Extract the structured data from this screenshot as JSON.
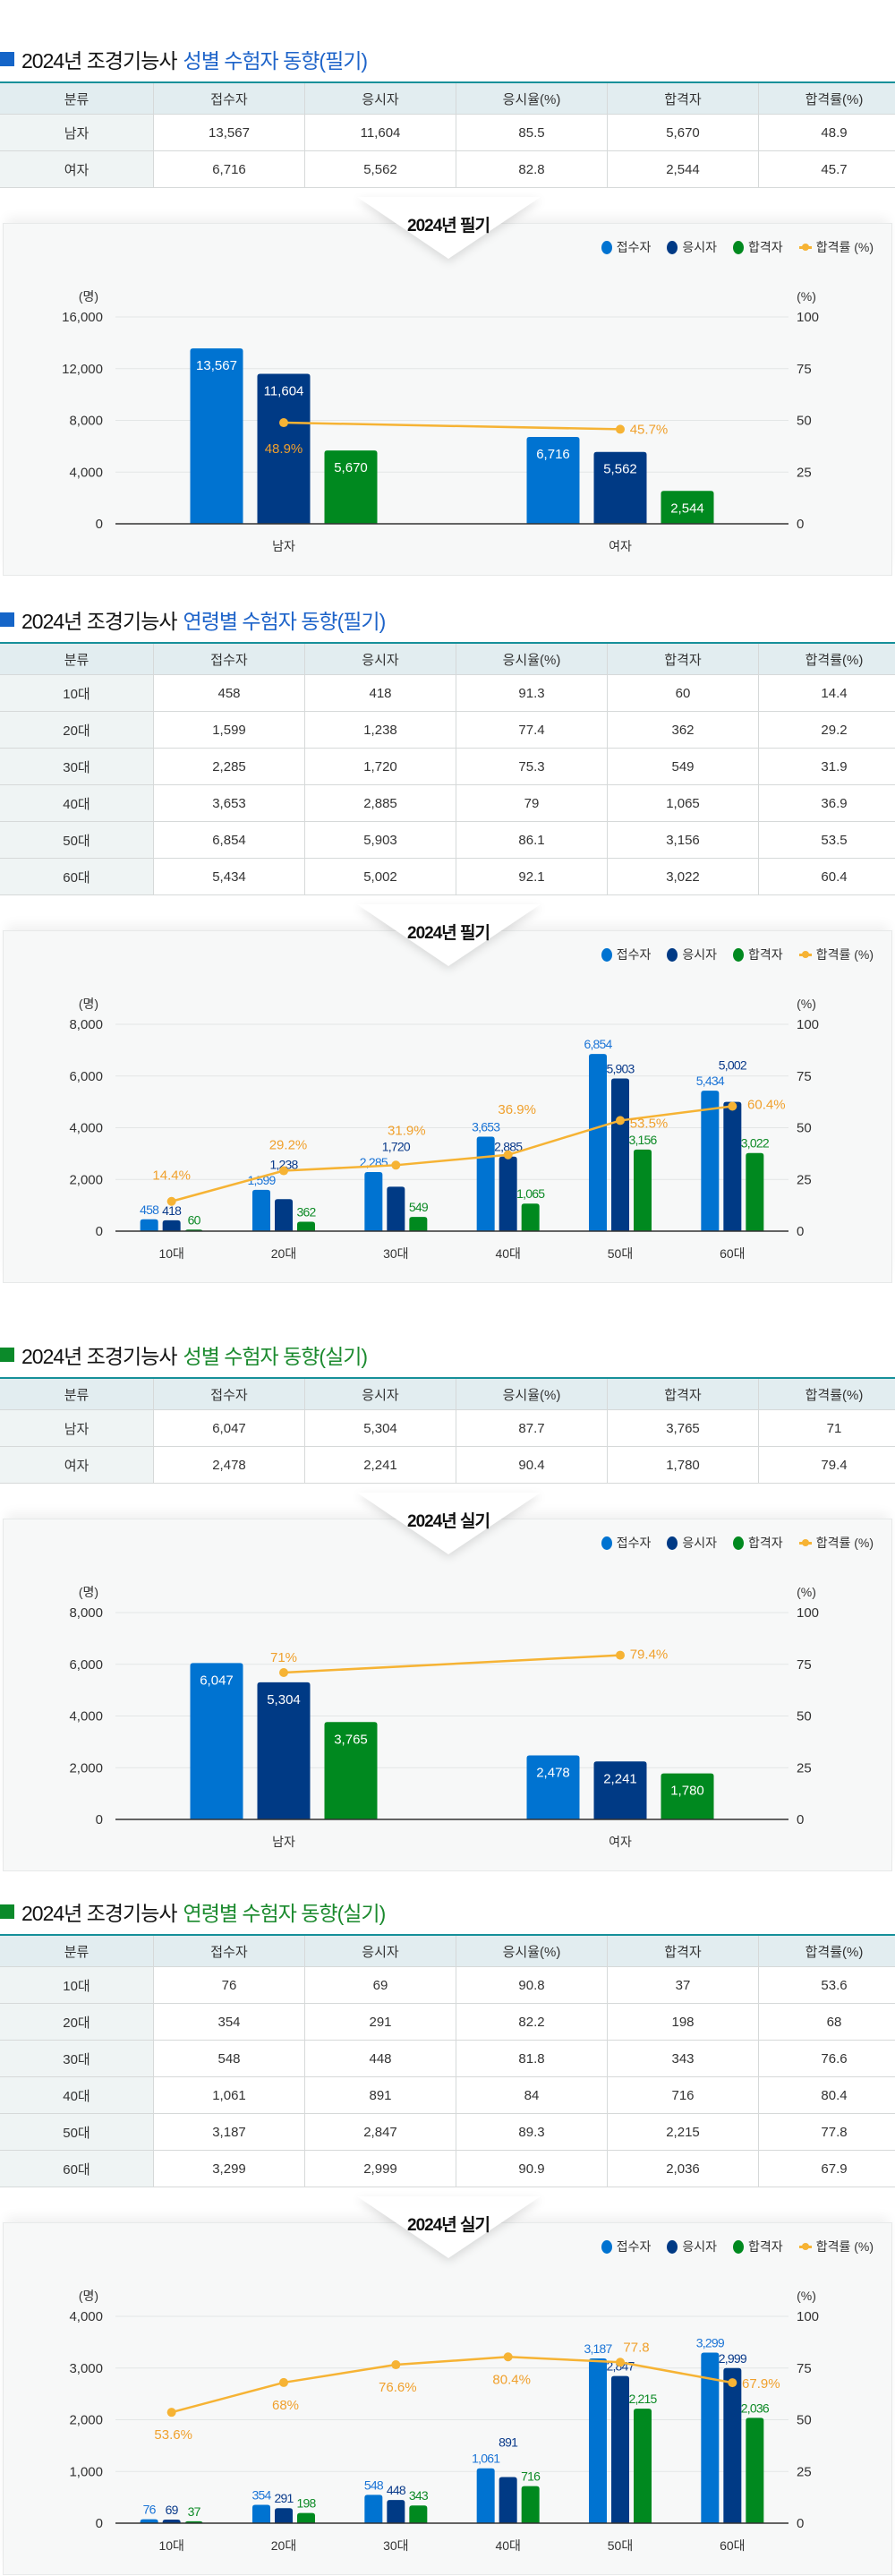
{
  "sections": [
    {
      "title_prefix": "2024년 조경기능사",
      "title_highlight": "성별 수험자 동향(필기)",
      "accent": "#1565c8",
      "table": {
        "headers": [
          "분류",
          "접수자",
          "응시자",
          "응시율(%)",
          "합격자",
          "합격률(%)"
        ],
        "rows": [
          [
            "남자",
            "13,567",
            "11,604",
            "85.5",
            "5,670",
            "48.9"
          ],
          [
            "여자",
            "6,716",
            "5,562",
            "82.8",
            "2,544",
            "45.7"
          ]
        ]
      }
    },
    {
      "title_prefix": "2024년 조경기능사",
      "title_highlight": "연령별 수험자 동향(필기)",
      "accent": "#1565c8",
      "table": {
        "headers": [
          "분류",
          "접수자",
          "응시자",
          "응시율(%)",
          "합격자",
          "합격률(%)"
        ],
        "rows": [
          [
            "10대",
            "458",
            "418",
            "91.3",
            "60",
            "14.4"
          ],
          [
            "20대",
            "1,599",
            "1,238",
            "77.4",
            "362",
            "29.2"
          ],
          [
            "30대",
            "2,285",
            "1,720",
            "75.3",
            "549",
            "31.9"
          ],
          [
            "40대",
            "3,653",
            "2,885",
            "79",
            "1,065",
            "36.9"
          ],
          [
            "50대",
            "6,854",
            "5,903",
            "86.1",
            "3,156",
            "53.5"
          ],
          [
            "60대",
            "5,434",
            "5,002",
            "92.1",
            "3,022",
            "60.4"
          ]
        ]
      }
    },
    {
      "title_prefix": "2024년 조경기능사",
      "title_highlight": "성별 수험자 동향(실기)",
      "accent": "#0b8a2a",
      "table": {
        "headers": [
          "분류",
          "접수자",
          "응시자",
          "응시율(%)",
          "합격자",
          "합격률(%)"
        ],
        "rows": [
          [
            "남자",
            "6,047",
            "5,304",
            "87.7",
            "3,765",
            "71"
          ],
          [
            "여자",
            "2,478",
            "2,241",
            "90.4",
            "1,780",
            "79.4"
          ]
        ]
      }
    },
    {
      "title_prefix": "2024년 조경기능사",
      "title_highlight": "연령별 수험자 동향(실기)",
      "accent": "#0b8a2a",
      "table": {
        "headers": [
          "분류",
          "접수자",
          "응시자",
          "응시율(%)",
          "합격자",
          "합격률(%)"
        ],
        "rows": [
          [
            "10대",
            "76",
            "69",
            "90.8",
            "37",
            "53.6"
          ],
          [
            "20대",
            "354",
            "291",
            "82.2",
            "198",
            "68"
          ],
          [
            "30대",
            "548",
            "448",
            "81.8",
            "343",
            "76.6"
          ],
          [
            "40대",
            "1,061",
            "891",
            "84",
            "716",
            "80.4"
          ],
          [
            "50대",
            "3,187",
            "2,847",
            "89.3",
            "2,215",
            "77.8"
          ],
          [
            "60대",
            "3,299",
            "2,999",
            "90.9",
            "2,036",
            "67.9"
          ]
        ]
      }
    }
  ],
  "chart_data": [
    {
      "type": "bar+line",
      "title": "2024년 필기",
      "categories": [
        "남자",
        "여자"
      ],
      "y_left": {
        "label": "(명)",
        "range": [
          0,
          16000
        ],
        "ticks": [
          0,
          4000,
          8000,
          12000,
          16000
        ]
      },
      "y_right": {
        "label": "(%)",
        "range": [
          0,
          100
        ],
        "ticks": [
          0,
          25,
          50,
          75,
          100
        ]
      },
      "grid": true,
      "legend": "top-right",
      "data_labels": "inside",
      "series": [
        {
          "name": "접수자",
          "type": "bar",
          "color": "#0073d1",
          "label_color": "#1b74d6",
          "values": [
            13567,
            6716
          ]
        },
        {
          "name": "응시자",
          "type": "bar",
          "color": "#003a85",
          "label_color": "#0a3a8a",
          "values": [
            11604,
            5562
          ]
        },
        {
          "name": "합격자",
          "type": "bar",
          "color": "#00891f",
          "label_color": "#0d8a26",
          "values": [
            5670,
            2544
          ]
        },
        {
          "name": "합격률 (%)",
          "type": "line",
          "axis": "right",
          "color": "#f6b334",
          "label_color": "#f0a02c",
          "values": [
            48.9,
            45.7
          ],
          "labels": [
            "48.9%",
            "45.7%"
          ]
        }
      ]
    },
    {
      "type": "bar+line",
      "title": "2024년 필기",
      "categories": [
        "10대",
        "20대",
        "30대",
        "40대",
        "50대",
        "60대"
      ],
      "y_left": {
        "label": "(명)",
        "range": [
          0,
          8000
        ],
        "ticks": [
          0,
          2000,
          4000,
          6000,
          8000
        ]
      },
      "y_right": {
        "label": "(%)",
        "range": [
          0,
          100
        ],
        "ticks": [
          0,
          25,
          50,
          75,
          100
        ]
      },
      "grid": true,
      "legend": "top-right",
      "data_labels": "above",
      "series": [
        {
          "name": "접수자",
          "type": "bar",
          "color": "#0073d1",
          "label_color": "#1b74d6",
          "values": [
            458,
            1599,
            2285,
            3653,
            6854,
            5434
          ]
        },
        {
          "name": "응시자",
          "type": "bar",
          "color": "#003a85",
          "label_color": "#0a3a8a",
          "values": [
            418,
            1238,
            1720,
            2885,
            5903,
            5002
          ]
        },
        {
          "name": "합격자",
          "type": "bar",
          "color": "#00891f",
          "label_color": "#0d8a26",
          "values": [
            60,
            362,
            549,
            1065,
            3156,
            3022
          ]
        },
        {
          "name": "합격률 (%)",
          "type": "line",
          "axis": "right",
          "color": "#f6b334",
          "label_color": "#f0a02c",
          "values": [
            14.4,
            29.2,
            31.9,
            36.9,
            53.5,
            60.4
          ],
          "labels": [
            "14.4%",
            "29.2%",
            "31.9%",
            "36.9%",
            "53.5%",
            "60.4%"
          ]
        }
      ]
    },
    {
      "type": "bar+line",
      "title": "2024년 실기",
      "categories": [
        "남자",
        "여자"
      ],
      "y_left": {
        "label": "(명)",
        "range": [
          0,
          8000
        ],
        "ticks": [
          0,
          2000,
          4000,
          6000,
          8000
        ]
      },
      "y_right": {
        "label": "(%)",
        "range": [
          0,
          100
        ],
        "ticks": [
          0,
          25,
          50,
          75,
          100
        ]
      },
      "grid": true,
      "legend": "top-right",
      "data_labels": "inside",
      "series": [
        {
          "name": "접수자",
          "type": "bar",
          "color": "#0073d1",
          "label_color": "#1b74d6",
          "values": [
            6047,
            2478
          ]
        },
        {
          "name": "응시자",
          "type": "bar",
          "color": "#003a85",
          "label_color": "#0a3a8a",
          "values": [
            5304,
            2241
          ]
        },
        {
          "name": "합격자",
          "type": "bar",
          "color": "#00891f",
          "label_color": "#0d8a26",
          "values": [
            3765,
            1780
          ]
        },
        {
          "name": "합격률 (%)",
          "type": "line",
          "axis": "right",
          "color": "#f6b334",
          "label_color": "#f0a02c",
          "values": [
            71,
            79.4
          ],
          "labels": [
            "71%",
            "79.4%"
          ]
        }
      ]
    },
    {
      "type": "bar+line",
      "title": "2024년 실기",
      "categories": [
        "10대",
        "20대",
        "30대",
        "40대",
        "50대",
        "60대"
      ],
      "y_left": {
        "label": "(명)",
        "range": [
          0,
          4000
        ],
        "ticks": [
          0,
          1000,
          2000,
          3000,
          4000
        ]
      },
      "y_right": {
        "label": "(%)",
        "range": [
          0,
          100
        ],
        "ticks": [
          0,
          25,
          50,
          75,
          100
        ]
      },
      "grid": true,
      "legend": "top-right",
      "data_labels": "above",
      "series": [
        {
          "name": "접수자",
          "type": "bar",
          "color": "#0073d1",
          "label_color": "#1b74d6",
          "values": [
            76,
            354,
            548,
            1061,
            3187,
            3299
          ]
        },
        {
          "name": "응시자",
          "type": "bar",
          "color": "#003a85",
          "label_color": "#0a3a8a",
          "values": [
            69,
            291,
            448,
            891,
            2847,
            2999
          ]
        },
        {
          "name": "합격자",
          "type": "bar",
          "color": "#00891f",
          "label_color": "#0d8a26",
          "values": [
            37,
            198,
            343,
            716,
            2215,
            2036
          ]
        },
        {
          "name": "합격률 (%)",
          "type": "line",
          "axis": "right",
          "color": "#f6b334",
          "label_color": "#f0a02c",
          "values": [
            53.6,
            68,
            76.6,
            80.4,
            77.8,
            67.9
          ],
          "labels": [
            "53.6%",
            "68%",
            "76.6%",
            "80.4%",
            "77.8",
            "67.9%"
          ]
        }
      ]
    }
  ]
}
